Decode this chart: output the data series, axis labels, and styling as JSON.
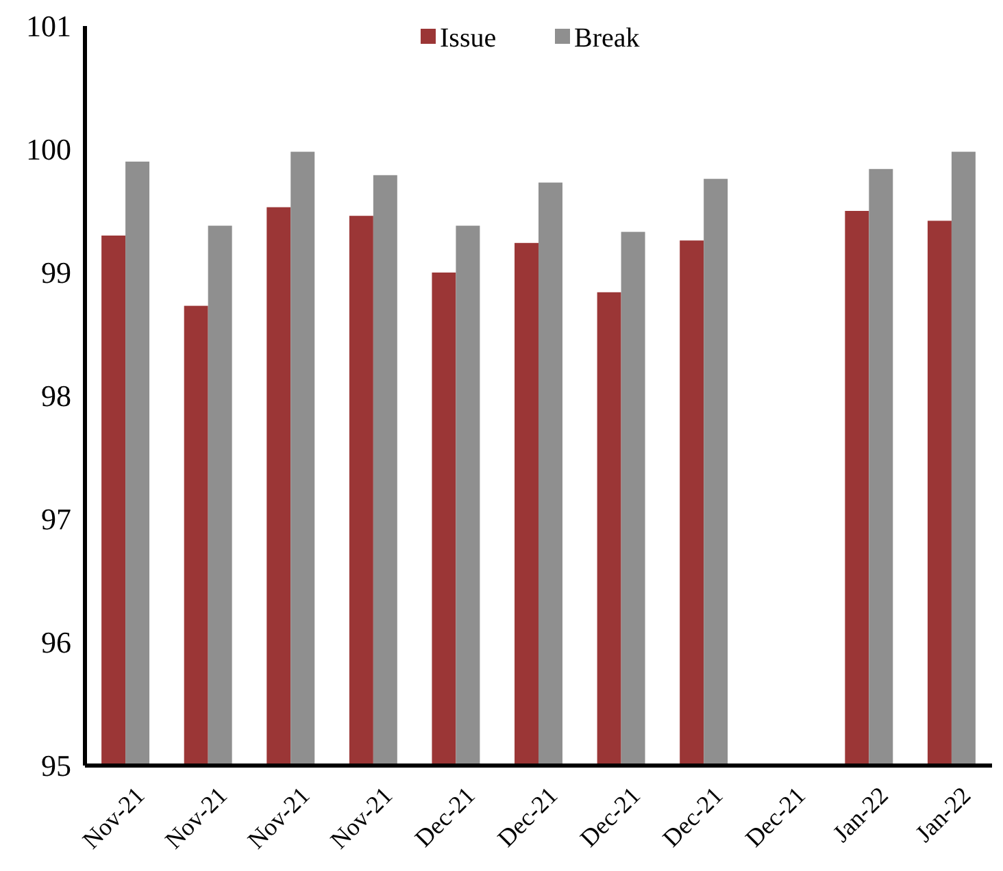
{
  "chart_data": {
    "type": "bar",
    "categories": [
      "Nov-21",
      "Nov-21",
      "Nov-21",
      "Nov-21",
      "Dec-21",
      "Dec-21",
      "Dec-21",
      "Dec-21",
      "Dec-21",
      "Jan-22",
      "Jan-22"
    ],
    "series": [
      {
        "name": "Issue",
        "color": "#9b3636",
        "values": [
          99.3,
          98.73,
          99.53,
          99.46,
          99.0,
          99.24,
          98.84,
          99.26,
          null,
          99.5,
          99.42
        ]
      },
      {
        "name": "Break",
        "color": "#8f8f8f",
        "values": [
          99.9,
          99.38,
          99.98,
          99.79,
          99.38,
          99.73,
          99.33,
          99.76,
          null,
          99.84,
          99.98
        ]
      }
    ],
    "ylim": [
      95,
      101
    ],
    "yticks": [
      95,
      96,
      97,
      98,
      99,
      100,
      101
    ],
    "grid": false,
    "legend": "top"
  }
}
